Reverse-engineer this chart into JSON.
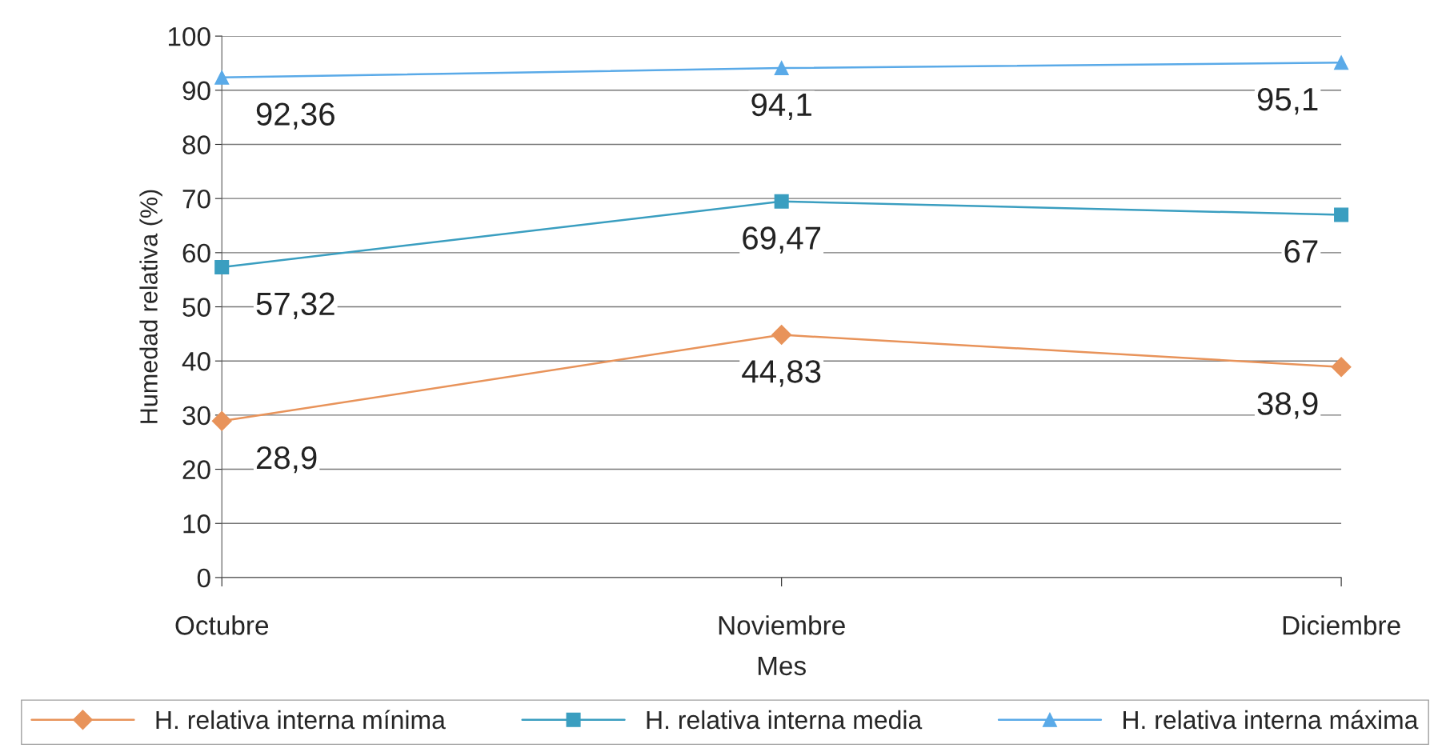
{
  "chart_data": {
    "type": "line",
    "xlabel": "Mes",
    "ylabel": "Humedad relativa (%)",
    "categories": [
      "Octubre",
      "Noviembre",
      "Diciembre"
    ],
    "series": [
      {
        "name": "H. relativa interna mínima",
        "color": "#e8935a",
        "marker": "diamond",
        "values": [
          28.9,
          44.83,
          38.9
        ],
        "value_labels": [
          "28,9",
          "44,83",
          "38,9"
        ]
      },
      {
        "name": "H. relativa interna media",
        "color": "#3a9ec0",
        "marker": "square",
        "values": [
          57.32,
          69.47,
          67
        ],
        "value_labels": [
          "57,32",
          "69,47",
          "67"
        ]
      },
      {
        "name": "H. relativa interna máxima",
        "color": "#5aaae8",
        "marker": "triangle",
        "values": [
          92.36,
          94.1,
          95.1
        ],
        "value_labels": [
          "92,36",
          "94,1",
          "95,1"
        ]
      }
    ],
    "ylim": [
      0,
      100
    ],
    "yticks": [
      0,
      10,
      20,
      30,
      40,
      50,
      60,
      70,
      80,
      90,
      100
    ],
    "grid": "y",
    "legend": "bottom"
  }
}
